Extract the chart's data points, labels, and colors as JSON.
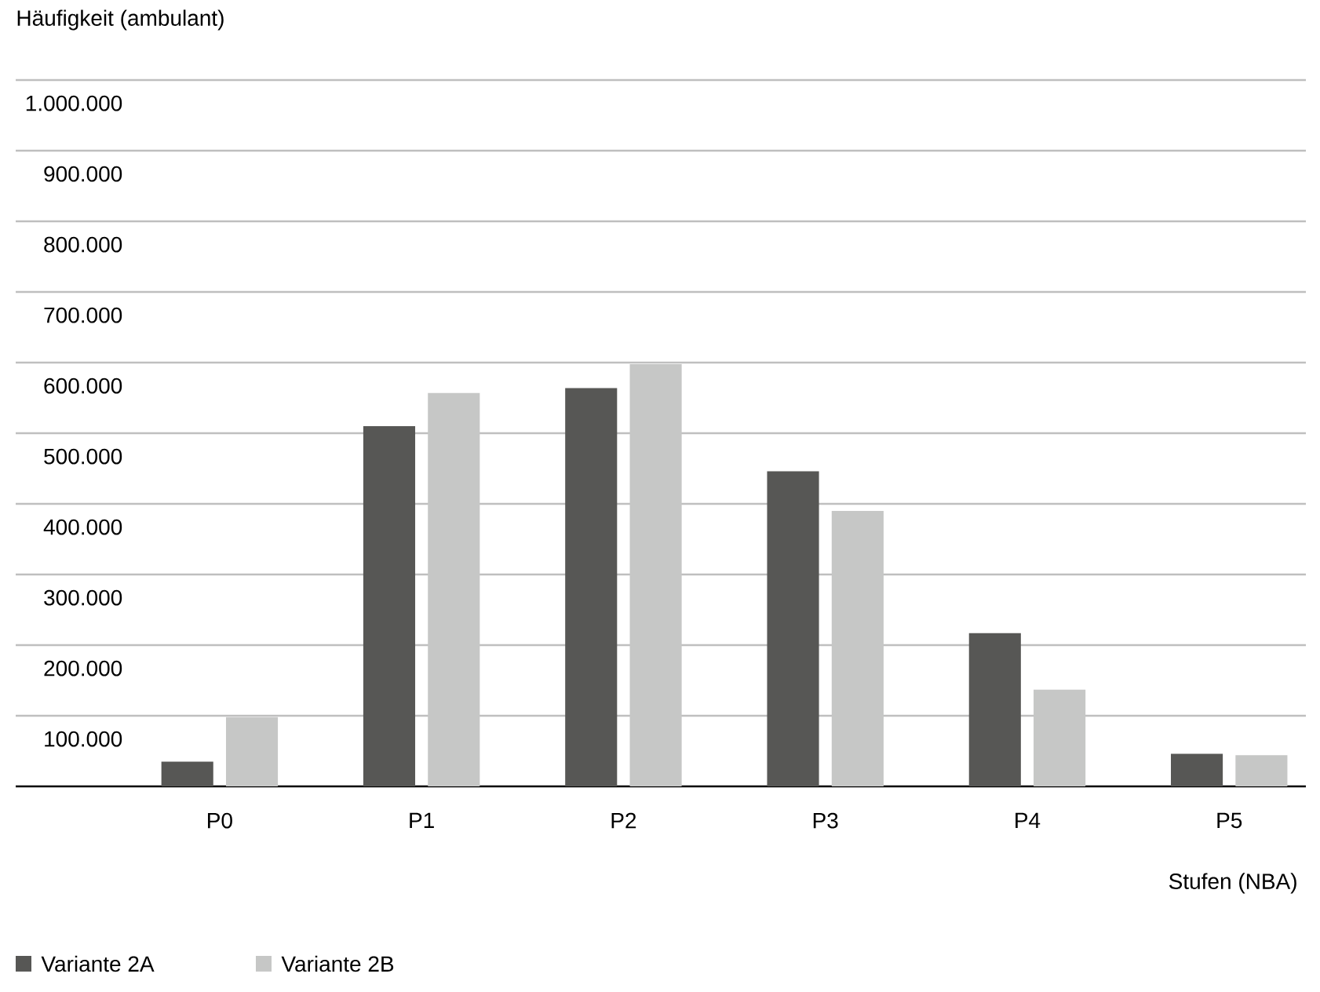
{
  "chart_data": {
    "type": "bar",
    "ylabel": "Häufigkeit (ambulant)",
    "xlabel": "Stufen (NBA)",
    "categories": [
      "P0",
      "P1",
      "P2",
      "P3",
      "P4",
      "P5"
    ],
    "series": [
      {
        "name": "Variante 2A",
        "color": "#575755",
        "values": [
          35000,
          510000,
          564000,
          446000,
          217000,
          46000
        ]
      },
      {
        "name": "Variante 2B",
        "color": "#c6c7c6",
        "values": [
          98000,
          557000,
          598000,
          390000,
          137000,
          44000
        ]
      }
    ],
    "ylim": [
      0,
      1000000
    ],
    "yticks": [
      {
        "value": 100000,
        "label": "100.000"
      },
      {
        "value": 200000,
        "label": "200.000"
      },
      {
        "value": 300000,
        "label": "300.000"
      },
      {
        "value": 400000,
        "label": "400.000"
      },
      {
        "value": 500000,
        "label": "500.000"
      },
      {
        "value": 600000,
        "label": "600.000"
      },
      {
        "value": 700000,
        "label": "700.000"
      },
      {
        "value": 800000,
        "label": "800.000"
      },
      {
        "value": 900000,
        "label": "900.000"
      },
      {
        "value": 1000000,
        "label": "1.000.000"
      }
    ],
    "grid": "y",
    "legend": "bottom left"
  }
}
